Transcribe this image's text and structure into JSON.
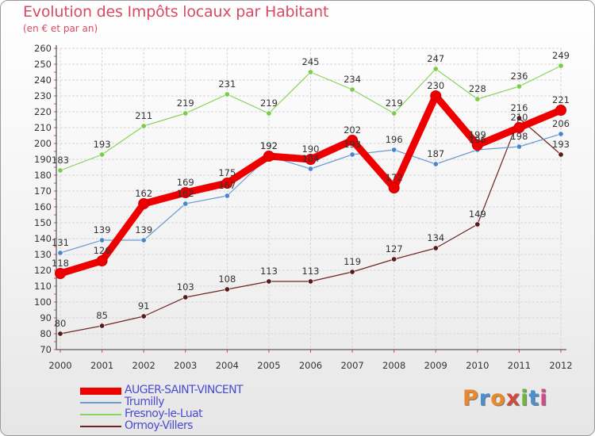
{
  "chart_data": {
    "type": "line",
    "title": "Evolution des Impôts locaux par Habitant",
    "subtitle": "(en € et par an)",
    "x": [
      "2000",
      "2001",
      "2002",
      "2003",
      "2004",
      "2005",
      "2006",
      "2007",
      "2008",
      "2009",
      "2010",
      "2011",
      "2012"
    ],
    "ylim": [
      70,
      260
    ],
    "yticks": [
      70,
      80,
      90,
      100,
      110,
      120,
      130,
      140,
      150,
      160,
      170,
      180,
      190,
      200,
      210,
      220,
      230,
      240,
      250,
      260
    ],
    "grid": true,
    "series": [
      {
        "name": "AUGER-SAINT-VINCENT",
        "color": "#ee0000",
        "values": [
          118,
          126,
          162,
          169,
          175,
          192,
          190,
          202,
          172,
          230,
          199,
          210,
          221
        ]
      },
      {
        "name": "Trumilly",
        "color": "#6c9bd2",
        "values": [
          131,
          139,
          139,
          162,
          167,
          192,
          184,
          193,
          196,
          187,
          196,
          198,
          206
        ]
      },
      {
        "name": "Fresnoy-le-Luat",
        "color": "#88d45c",
        "values": [
          183,
          193,
          211,
          219,
          231,
          219,
          245,
          234,
          219,
          247,
          228,
          236,
          249
        ]
      },
      {
        "name": "Ormoy-Villers",
        "color": "#6e2424",
        "values": [
          80,
          85,
          91,
          103,
          108,
          113,
          113,
          119,
          127,
          134,
          149,
          216,
          193
        ]
      }
    ]
  },
  "brand": {
    "letters": [
      "P",
      "r",
      "o",
      "x",
      "i",
      "t",
      "i"
    ],
    "colors": [
      "#e88a2a",
      "#4a8fd0",
      "#e88a2a",
      "#d04a3a",
      "#6cb83a",
      "#4a8fd0",
      "#d04a8a"
    ]
  }
}
